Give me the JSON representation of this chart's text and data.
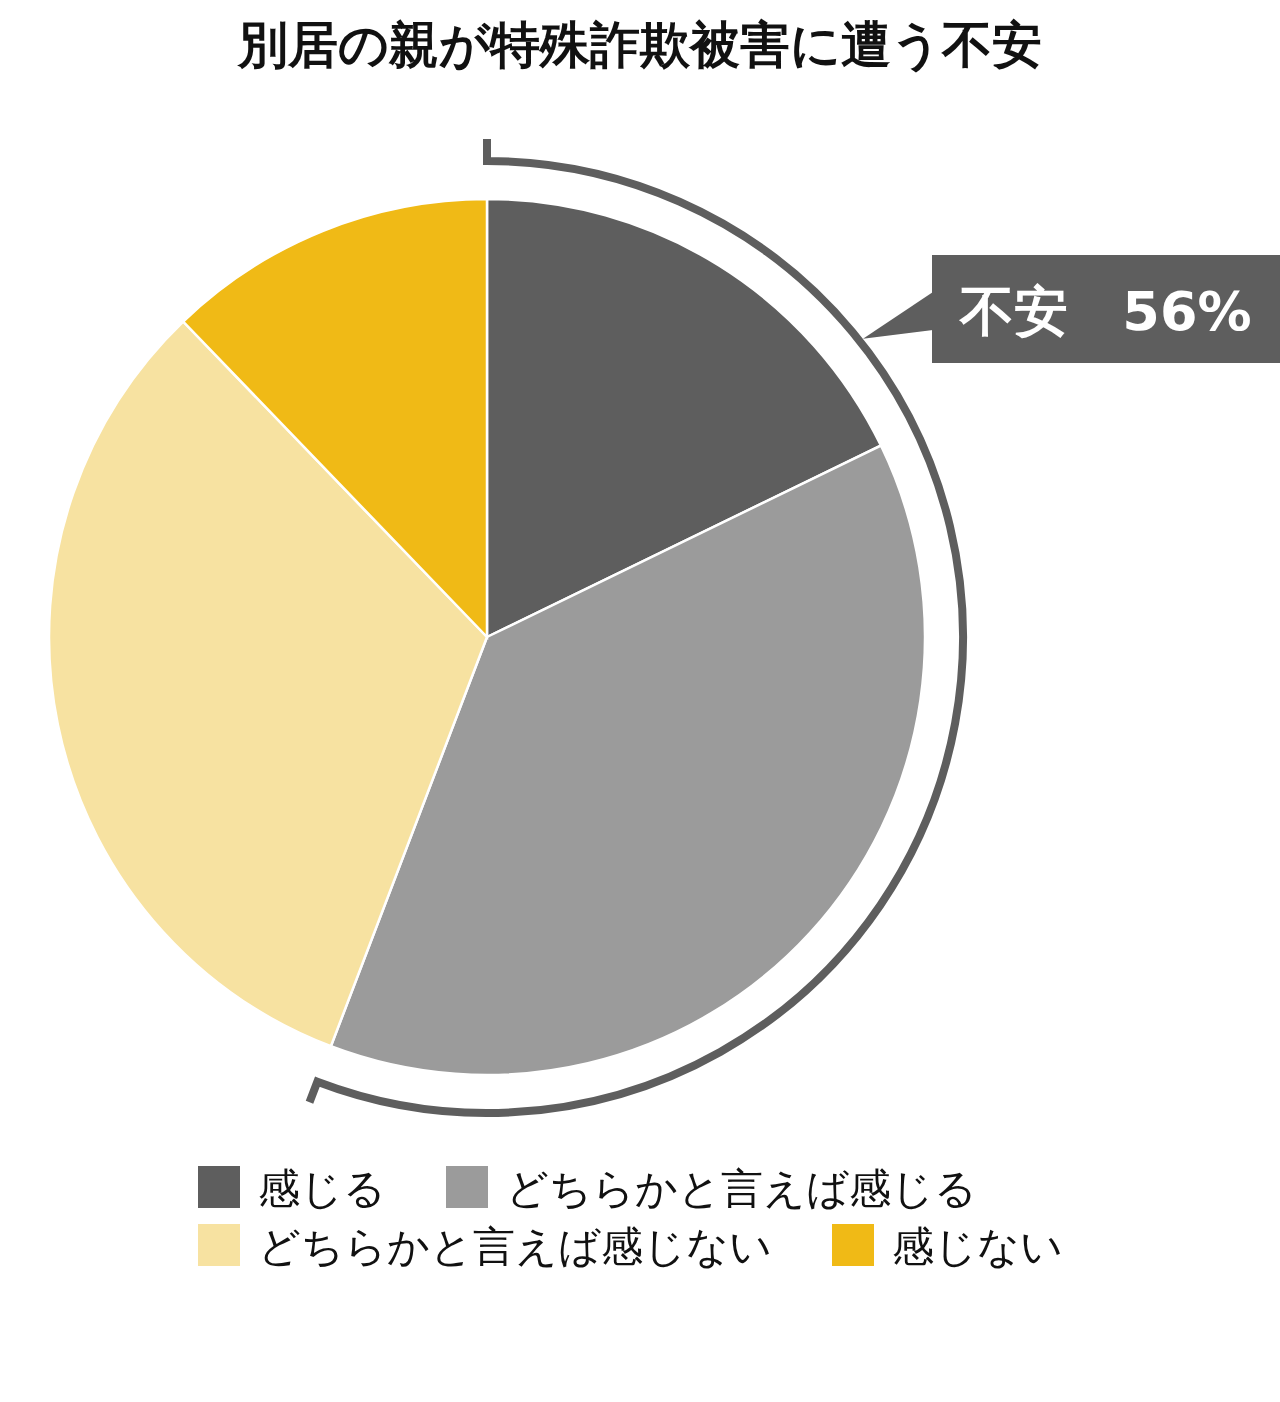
{
  "chart_data": {
    "type": "pie",
    "title": "別居の親が特殊詐欺被害に遭う不安",
    "categories": [
      "感じる",
      "どちらかと言えば感じる",
      "どちらかと言えば感じない",
      "感じない"
    ],
    "values": [
      17.8,
      38.0,
      32.0,
      12.2
    ],
    "colors": [
      "#5e5e5e",
      "#9b9b9b",
      "#f7e2a1",
      "#f0ba16"
    ],
    "legend": "bottom",
    "annotations": [
      "不安　56%"
    ]
  }
}
